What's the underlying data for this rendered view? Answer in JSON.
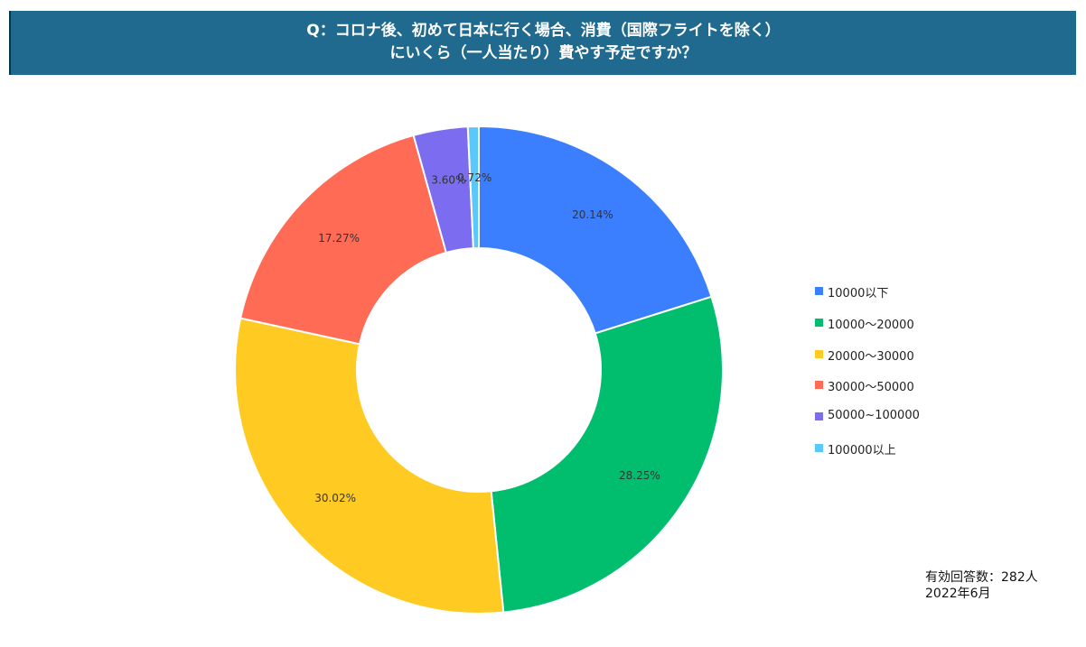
{
  "title": {
    "line1": "Q：コロナ後、初めて日本に行く場合、消費（国際フライトを除く）",
    "line2": "にいくら（一人当たり）費やす予定ですか？"
  },
  "chart_data": {
    "type": "pie",
    "donut": true,
    "unit": "%",
    "legend_position": "right",
    "categories": [
      "10000以下",
      "10000～20000",
      "20000～30000",
      "30000～50000",
      "50000~100000",
      "100000以上"
    ],
    "values": [
      20.14,
      28.25,
      30.02,
      17.27,
      3.6,
      0.72
    ],
    "labels": [
      "20.14%",
      "28.25%",
      "30.02%",
      "17.27%",
      "3.60%",
      "0.72%"
    ],
    "colors": [
      "#3b7fff",
      "#00be6e",
      "#ffcb23",
      "#ff6b55",
      "#7c6cf0",
      "#5ac8fa"
    ]
  },
  "footnote": {
    "respondents": "有効回答数：282人",
    "date": "2022年6月"
  }
}
